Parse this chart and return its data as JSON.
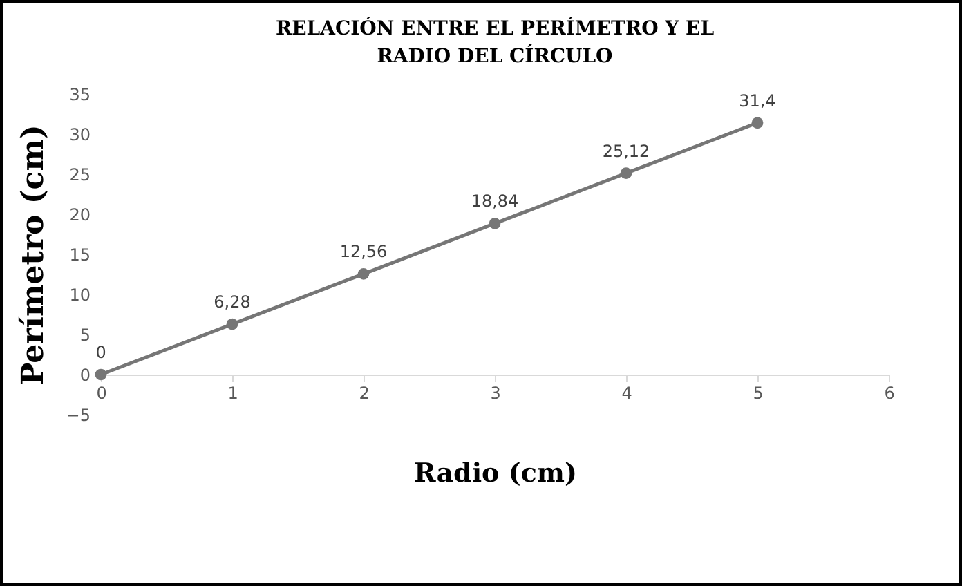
{
  "chart_data": {
    "type": "line",
    "title": "RELACIÓN ENTRE EL PERÍMETRO Y EL RADIO DEL CÍRCULO",
    "xlabel": "Radio (cm)",
    "ylabel": "Perímetro (cm)",
    "x": [
      0,
      1,
      2,
      3,
      4,
      5
    ],
    "series": [
      {
        "color": "#767676",
        "values": [
          0,
          6.28,
          12.56,
          18.84,
          25.12,
          31.4
        ],
        "value_labels": [
          "0",
          "6,28",
          "12,56",
          "18,84",
          "25,12",
          "31,4"
        ]
      }
    ],
    "xlim": [
      0,
      6
    ],
    "xticks": [
      0,
      1,
      2,
      3,
      4,
      5,
      6
    ],
    "ylim": [
      -5,
      35
    ],
    "yticks": [
      -5,
      0,
      5,
      10,
      15,
      20,
      25,
      30,
      35
    ],
    "grid": false,
    "marker": "circle",
    "line_style": "solid"
  }
}
